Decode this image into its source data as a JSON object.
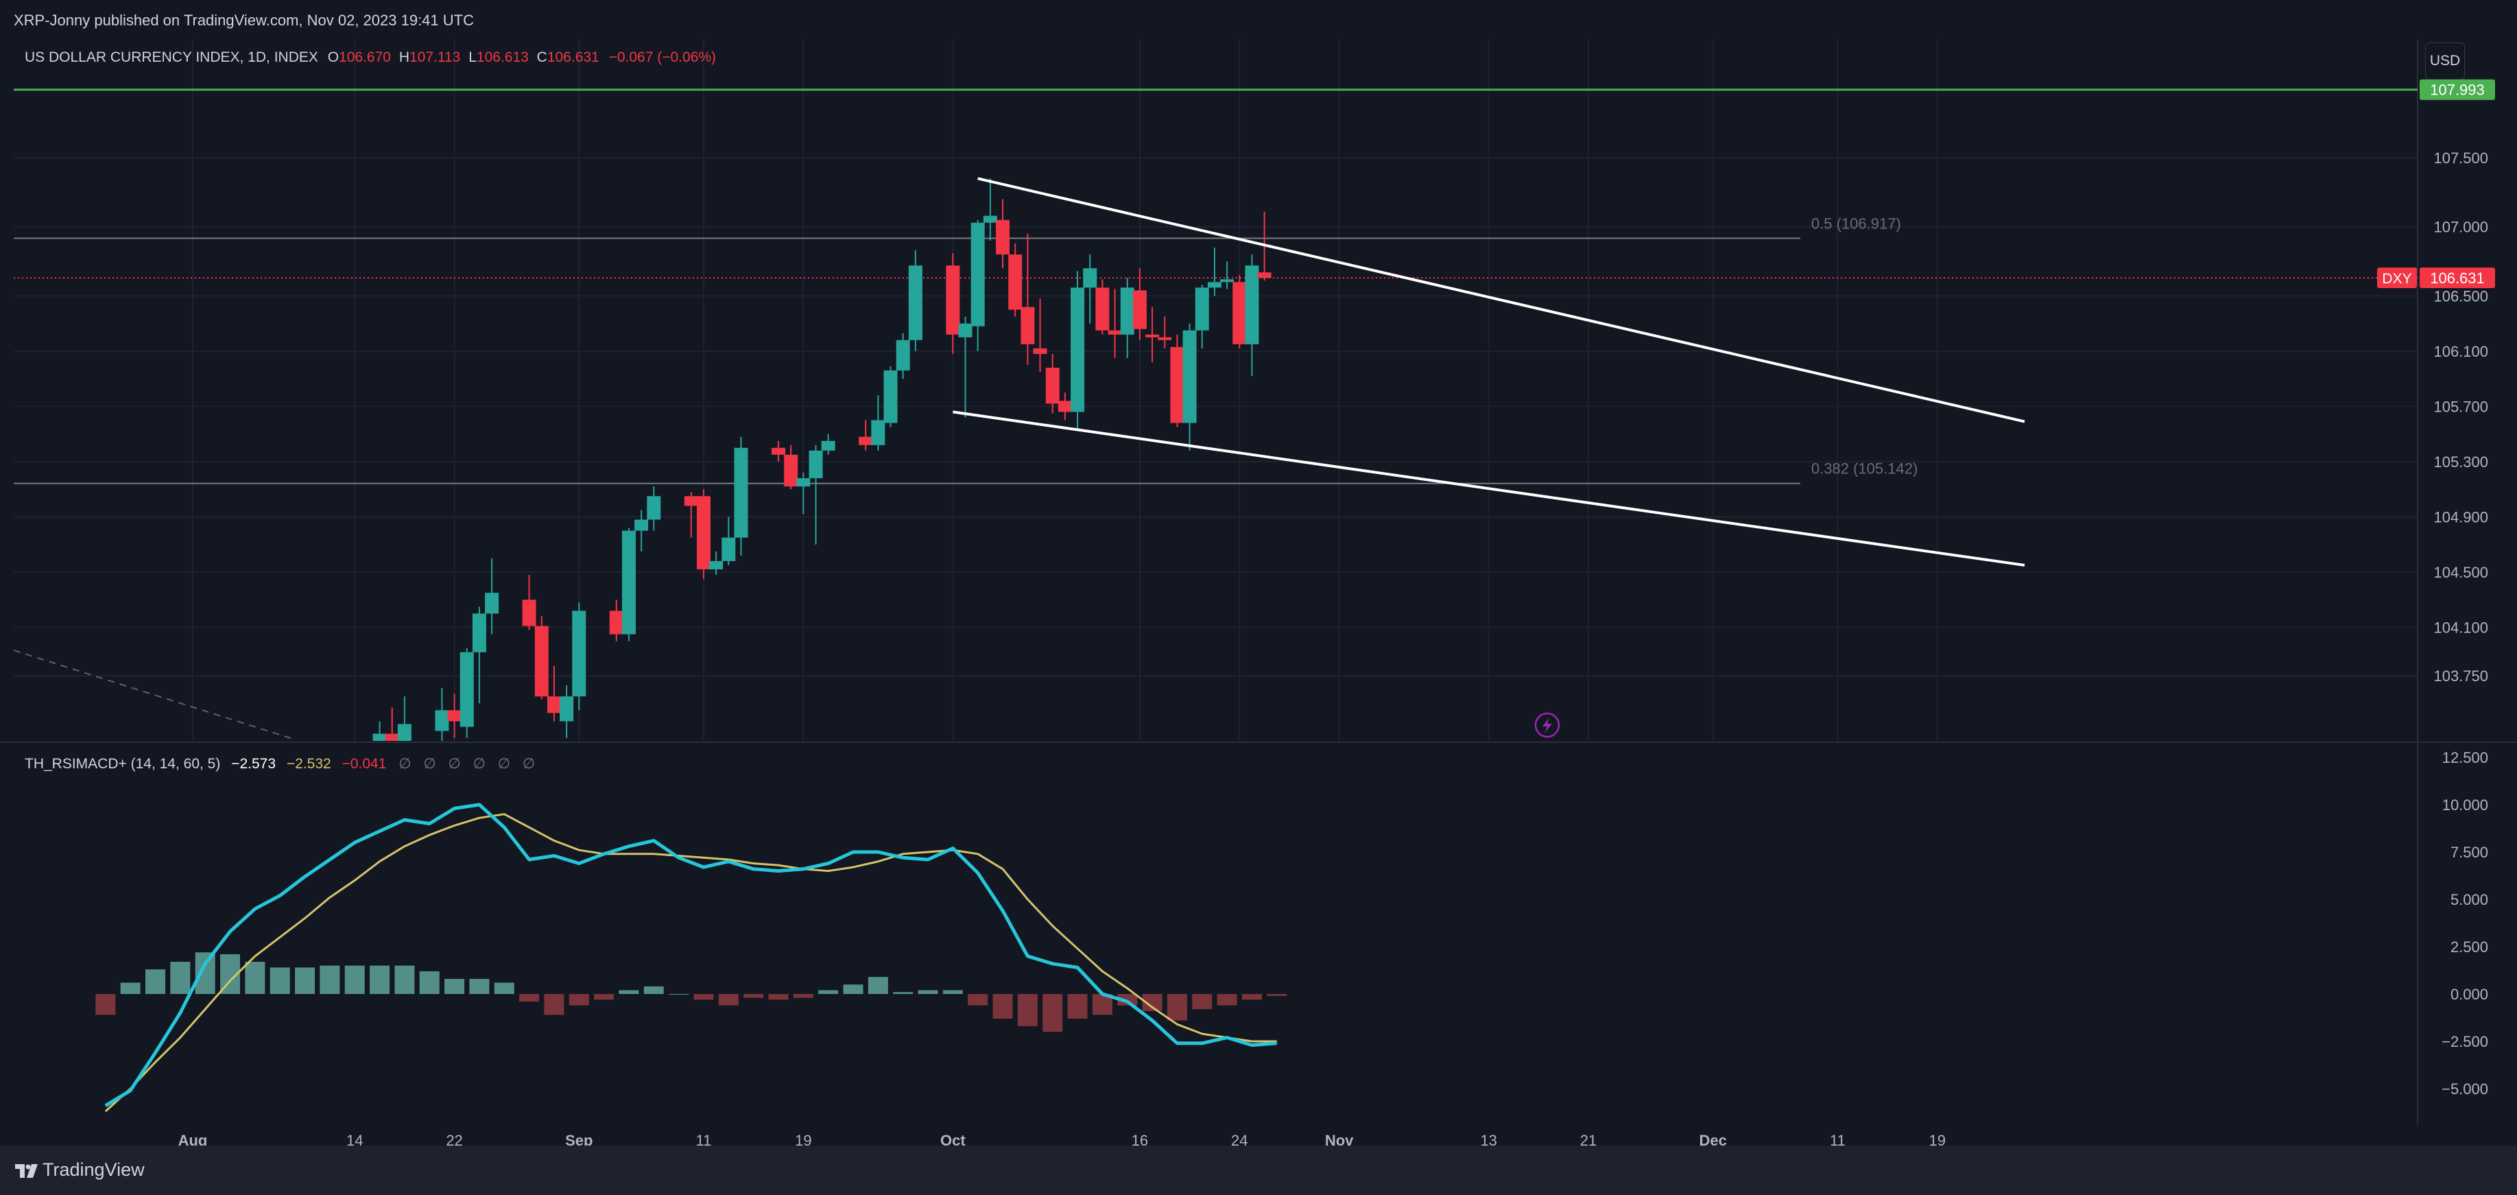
{
  "publish_line": "XRP-Jonny published on TradingView.com, Nov 02, 2023 19:41 UTC",
  "symbol_header": {
    "name": "US DOLLAR CURRENCY INDEX, 1D, INDEX",
    "o_label": "O",
    "o_value": "106.670",
    "h_label": "H",
    "h_value": "107.113",
    "l_label": "L",
    "l_value": "106.613",
    "c_label": "C",
    "c_value": "106.631",
    "change": "−0.067 (−0.06%)"
  },
  "currency_button": "USD",
  "footer_brand": "TradingView",
  "colors": {
    "up": "#26a69a",
    "down": "#f23645",
    "resistance": "#4caf50",
    "macd_line": "#26c6da",
    "signal_line": "#d4c46a"
  },
  "chart_data": [
    {
      "type": "candlestick",
      "title": "US DOLLAR CURRENCY INDEX, 1D, INDEX",
      "ylim": [
        103.35,
        108.68
      ],
      "y_ticks": [
        "107.500",
        "107.000",
        "106.500",
        "106.100",
        "105.700",
        "105.300",
        "104.900",
        "104.500",
        "104.100",
        "103.750"
      ],
      "y_tick_values": [
        107.5,
        107.0,
        106.5,
        106.1,
        105.7,
        105.3,
        104.9,
        104.5,
        104.1,
        103.75
      ],
      "x_ticks": [
        {
          "label": "Aug",
          "day": 0
        },
        {
          "label": "14",
          "day": 13
        },
        {
          "label": "22",
          "day": 21
        },
        {
          "label": "Sep",
          "day": 31
        },
        {
          "label": "11",
          "day": 41
        },
        {
          "label": "19",
          "day": 49
        },
        {
          "label": "Oct",
          "day": 61
        },
        {
          "label": "16",
          "day": 76
        },
        {
          "label": "24",
          "day": 84
        },
        {
          "label": "Nov",
          "day": 92
        },
        {
          "label": "13",
          "day": 104
        },
        {
          "label": "21",
          "day": 112
        },
        {
          "label": "Dec",
          "day": 122
        },
        {
          "label": "11",
          "day": 132
        },
        {
          "label": "19",
          "day": 140
        }
      ],
      "candles": [
        {
          "day": 15,
          "o": 103.2,
          "h": 103.42,
          "l": 103.1,
          "c": 103.33
        },
        {
          "day": 16,
          "o": 103.33,
          "h": 103.52,
          "l": 103.2,
          "c": 103.26
        },
        {
          "day": 17,
          "o": 103.26,
          "h": 103.6,
          "l": 103.15,
          "c": 103.4
        },
        {
          "day": 20,
          "o": 103.35,
          "h": 103.66,
          "l": 103.25,
          "c": 103.5
        },
        {
          "day": 21,
          "o": 103.5,
          "h": 103.62,
          "l": 103.3,
          "c": 103.42
        },
        {
          "day": 22,
          "o": 103.38,
          "h": 103.95,
          "l": 103.3,
          "c": 103.92
        },
        {
          "day": 23,
          "o": 103.92,
          "h": 104.25,
          "l": 103.55,
          "c": 104.2
        },
        {
          "day": 24,
          "o": 104.2,
          "h": 104.6,
          "l": 104.05,
          "c": 104.35
        },
        {
          "day": 27,
          "o": 104.3,
          "h": 104.48,
          "l": 104.08,
          "c": 104.11
        },
        {
          "day": 28,
          "o": 104.11,
          "h": 104.18,
          "l": 103.58,
          "c": 103.6
        },
        {
          "day": 29,
          "o": 103.6,
          "h": 103.82,
          "l": 103.42,
          "c": 103.48
        },
        {
          "day": 30,
          "o": 103.42,
          "h": 103.68,
          "l": 103.3,
          "c": 103.6
        },
        {
          "day": 31,
          "o": 103.6,
          "h": 104.28,
          "l": 103.5,
          "c": 104.22
        },
        {
          "day": 34,
          "o": 104.22,
          "h": 104.3,
          "l": 104.0,
          "c": 104.05
        },
        {
          "day": 35,
          "o": 104.05,
          "h": 104.82,
          "l": 104.0,
          "c": 104.8
        },
        {
          "day": 36,
          "o": 104.8,
          "h": 104.95,
          "l": 104.65,
          "c": 104.88
        },
        {
          "day": 37,
          "o": 104.88,
          "h": 105.12,
          "l": 104.8,
          "c": 105.05
        },
        {
          "day": 40,
          "o": 105.05,
          "h": 105.08,
          "l": 104.75,
          "c": 104.98
        },
        {
          "day": 41,
          "o": 105.05,
          "h": 105.1,
          "l": 104.45,
          "c": 104.52
        },
        {
          "day": 42,
          "o": 104.52,
          "h": 104.65,
          "l": 104.48,
          "c": 104.58
        },
        {
          "day": 43,
          "o": 104.58,
          "h": 104.9,
          "l": 104.55,
          "c": 104.75
        },
        {
          "day": 44,
          "o": 104.75,
          "h": 105.48,
          "l": 104.62,
          "c": 105.4
        },
        {
          "day": 47,
          "o": 105.4,
          "h": 105.45,
          "l": 105.3,
          "c": 105.35
        },
        {
          "day": 48,
          "o": 105.35,
          "h": 105.42,
          "l": 105.1,
          "c": 105.12
        },
        {
          "day": 49,
          "o": 105.12,
          "h": 105.22,
          "l": 104.92,
          "c": 105.18
        },
        {
          "day": 50,
          "o": 105.18,
          "h": 105.42,
          "l": 104.7,
          "c": 105.38
        },
        {
          "day": 51,
          "o": 105.38,
          "h": 105.5,
          "l": 105.35,
          "c": 105.45
        },
        {
          "day": 54,
          "o": 105.48,
          "h": 105.6,
          "l": 105.38,
          "c": 105.42
        },
        {
          "day": 55,
          "o": 105.42,
          "h": 105.78,
          "l": 105.38,
          "c": 105.6
        },
        {
          "day": 56,
          "o": 105.58,
          "h": 105.99,
          "l": 105.55,
          "c": 105.96
        },
        {
          "day": 57,
          "o": 105.96,
          "h": 106.23,
          "l": 105.9,
          "c": 106.18
        },
        {
          "day": 58,
          "o": 106.18,
          "h": 106.83,
          "l": 106.1,
          "c": 106.72
        },
        {
          "day": 61,
          "o": 106.72,
          "h": 106.81,
          "l": 106.08,
          "c": 106.22
        },
        {
          "day": 62,
          "o": 106.2,
          "h": 106.35,
          "l": 105.62,
          "c": 106.3
        },
        {
          "day": 63,
          "o": 106.28,
          "h": 107.05,
          "l": 106.1,
          "c": 107.03
        },
        {
          "day": 64,
          "o": 107.03,
          "h": 107.35,
          "l": 106.9,
          "c": 107.08
        },
        {
          "day": 65,
          "o": 107.05,
          "h": 107.2,
          "l": 106.7,
          "c": 106.8
        },
        {
          "day": 66,
          "o": 106.8,
          "h": 106.88,
          "l": 106.35,
          "c": 106.4
        },
        {
          "day": 67,
          "o": 106.42,
          "h": 106.95,
          "l": 106.0,
          "c": 106.15
        },
        {
          "day": 68,
          "o": 106.12,
          "h": 106.48,
          "l": 105.95,
          "c": 106.08
        },
        {
          "day": 69,
          "o": 105.98,
          "h": 106.08,
          "l": 105.65,
          "c": 105.72
        },
        {
          "day": 70,
          "o": 105.74,
          "h": 105.8,
          "l": 105.6,
          "c": 105.66
        },
        {
          "day": 71,
          "o": 105.66,
          "h": 106.68,
          "l": 105.54,
          "c": 106.56
        },
        {
          "day": 72,
          "o": 106.56,
          "h": 106.8,
          "l": 106.3,
          "c": 106.7
        },
        {
          "day": 73,
          "o": 106.56,
          "h": 106.62,
          "l": 106.22,
          "c": 106.25
        },
        {
          "day": 74,
          "o": 106.25,
          "h": 106.55,
          "l": 106.05,
          "c": 106.22
        },
        {
          "day": 75,
          "o": 106.22,
          "h": 106.63,
          "l": 106.05,
          "c": 106.56
        },
        {
          "day": 76,
          "o": 106.54,
          "h": 106.7,
          "l": 106.18,
          "c": 106.26
        },
        {
          "day": 77,
          "o": 106.22,
          "h": 106.42,
          "l": 106.02,
          "c": 106.2
        },
        {
          "day": 78,
          "o": 106.2,
          "h": 106.35,
          "l": 106.12,
          "c": 106.18
        },
        {
          "day": 79,
          "o": 106.13,
          "h": 106.22,
          "l": 105.55,
          "c": 105.58
        },
        {
          "day": 80,
          "o": 105.58,
          "h": 106.3,
          "l": 105.38,
          "c": 106.25
        },
        {
          "day": 81,
          "o": 106.25,
          "h": 106.58,
          "l": 106.12,
          "c": 106.56
        },
        {
          "day": 82,
          "o": 106.56,
          "h": 106.85,
          "l": 106.5,
          "c": 106.6
        },
        {
          "day": 83,
          "o": 106.6,
          "h": 106.75,
          "l": 106.55,
          "c": 106.62
        },
        {
          "day": 84,
          "o": 106.6,
          "h": 106.65,
          "l": 106.12,
          "c": 106.15
        },
        {
          "day": 85,
          "o": 106.15,
          "h": 106.8,
          "l": 105.92,
          "c": 106.72
        },
        {
          "day": 86,
          "o": 106.67,
          "h": 107.11,
          "l": 106.61,
          "c": 106.63
        }
      ],
      "trendlines": [
        {
          "name": "channel-upper",
          "from": {
            "day": 63,
            "value": 107.35
          },
          "to": {
            "day": 147,
            "value": 105.59
          }
        },
        {
          "name": "channel-lower",
          "from": {
            "day": 61,
            "value": 105.66
          },
          "to": {
            "day": 147,
            "value": 104.55
          }
        }
      ],
      "horizontal_lines": [
        {
          "name": "resistance",
          "value": 107.993,
          "label": "107.993"
        },
        {
          "name": "fib-0.5",
          "value": 106.917,
          "label": "0.5 (106.917)"
        },
        {
          "name": "fib-0.382",
          "value": 105.142,
          "label": "0.382 (105.142)"
        }
      ],
      "last_price": {
        "symbol": "DXY",
        "value": 106.631,
        "label": "106.631"
      }
    },
    {
      "type": "line+histogram",
      "title": "TH_RSIMACD+ (14, 14, 60, 5)",
      "legend_values": [
        "−2.573",
        "−2.532",
        "−0.041"
      ],
      "legend_placeholders": [
        "∅",
        "∅",
        "∅",
        "∅",
        "∅",
        "∅"
      ],
      "ylim": [
        -6.0,
        13.0
      ],
      "y_ticks": [
        "12.500",
        "10.000",
        "7.500",
        "5.000",
        "2.500",
        "0.000",
        "−2.500",
        "−5.000"
      ],
      "y_tick_values": [
        12.5,
        10.0,
        7.5,
        5.0,
        2.5,
        0.0,
        -2.5,
        -5.0
      ],
      "series": [
        {
          "name": "rsimacd",
          "days": [
            -7,
            -5,
            -3,
            -1,
            1,
            3,
            5,
            7,
            9,
            11,
            13,
            15,
            17,
            19,
            21,
            23,
            25,
            27,
            29,
            31,
            33,
            35,
            37,
            39,
            41,
            43,
            45,
            47,
            49,
            51,
            53,
            55,
            57,
            59,
            61,
            63,
            65,
            67,
            69,
            71,
            73,
            75,
            77,
            79,
            81,
            83,
            85,
            87
          ],
          "values": [
            -5.9,
            -5.1,
            -3.1,
            -1.0,
            1.6,
            3.3,
            4.5,
            5.2,
            6.2,
            7.1,
            8.0,
            8.6,
            9.2,
            9.0,
            9.8,
            10.0,
            8.8,
            7.1,
            7.3,
            6.9,
            7.4,
            7.8,
            8.1,
            7.2,
            6.7,
            7.0,
            6.6,
            6.5,
            6.6,
            6.9,
            7.5,
            7.5,
            7.2,
            7.1,
            7.7,
            6.4,
            4.4,
            2.0,
            1.6,
            1.4,
            0.0,
            -0.4,
            -1.4,
            -2.6,
            -2.6,
            -2.3,
            -2.7,
            -2.6
          ]
        },
        {
          "name": "signal",
          "days": [
            -7,
            -5,
            -3,
            -1,
            1,
            3,
            5,
            7,
            9,
            11,
            13,
            15,
            17,
            19,
            21,
            23,
            25,
            27,
            29,
            31,
            33,
            35,
            37,
            39,
            41,
            43,
            45,
            47,
            49,
            51,
            53,
            55,
            57,
            59,
            61,
            63,
            65,
            67,
            69,
            71,
            73,
            75,
            77,
            79,
            81,
            83,
            85,
            87
          ],
          "values": [
            -6.2,
            -5.0,
            -3.6,
            -2.3,
            -0.8,
            0.7,
            2.0,
            3.0,
            4.0,
            5.1,
            6.0,
            7.0,
            7.8,
            8.4,
            8.9,
            9.3,
            9.5,
            8.8,
            8.1,
            7.6,
            7.4,
            7.4,
            7.4,
            7.3,
            7.2,
            7.1,
            6.9,
            6.8,
            6.6,
            6.5,
            6.7,
            7.0,
            7.4,
            7.5,
            7.6,
            7.4,
            6.6,
            5.0,
            3.6,
            2.4,
            1.2,
            0.3,
            -0.7,
            -1.6,
            -2.1,
            -2.3,
            -2.5,
            -2.5
          ]
        },
        {
          "name": "histogram",
          "days": [
            -7,
            -5,
            -3,
            -1,
            1,
            3,
            5,
            7,
            9,
            11,
            13,
            15,
            17,
            19,
            21,
            23,
            25,
            27,
            29,
            31,
            33,
            35,
            37,
            39,
            41,
            43,
            45,
            47,
            49,
            51,
            53,
            55,
            57,
            59,
            61,
            63,
            65,
            67,
            69,
            71,
            73,
            75,
            77,
            79,
            81,
            83,
            85,
            87
          ],
          "values": [
            -1.1,
            0.6,
            1.3,
            1.7,
            2.2,
            2.1,
            1.7,
            1.4,
            1.4,
            1.5,
            1.5,
            1.5,
            1.5,
            1.2,
            0.8,
            0.8,
            0.6,
            -0.4,
            -1.1,
            -0.6,
            -0.3,
            0.2,
            0.4,
            0.0,
            -0.3,
            -0.6,
            -0.2,
            -0.3,
            -0.2,
            0.2,
            0.5,
            0.9,
            0.1,
            0.2,
            0.2,
            -0.6,
            -1.3,
            -1.7,
            -2.0,
            -1.3,
            -1.1,
            -0.6,
            -0.9,
            -1.4,
            -0.8,
            -0.6,
            -0.3,
            -0.1
          ]
        }
      ]
    }
  ]
}
